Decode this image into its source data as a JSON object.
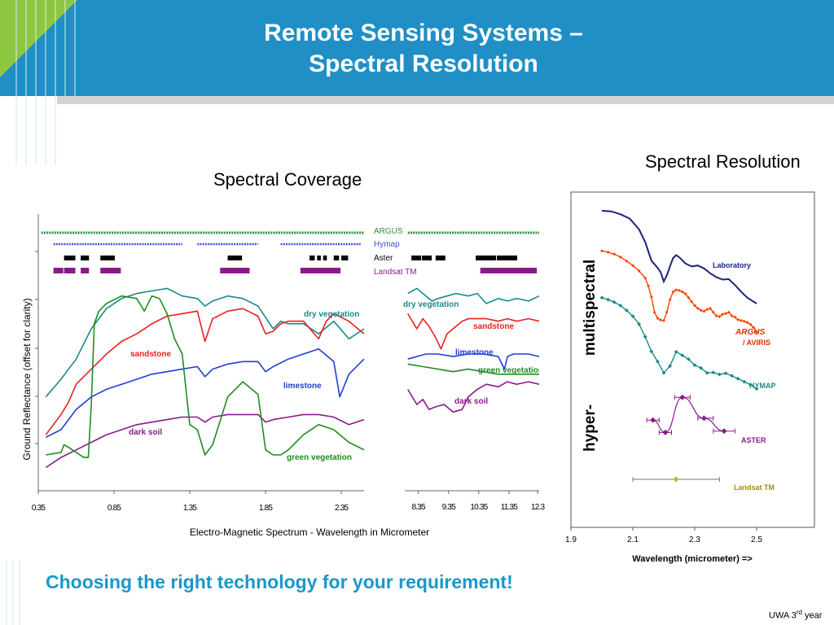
{
  "slide": {
    "title_line1": "Remote Sensing Systems –",
    "title_line2": "Spectral Resolution",
    "coverage_heading": "Spectral Coverage",
    "resolution_heading": "Spectral Resolution",
    "bottom_text": "Choosing the right technology for your requirement!",
    "footer": "UWA 3rd year",
    "footer_main": "UWA 3",
    "footer_sup": "rd",
    "footer_tail": " year"
  },
  "colors": {
    "header_blue": "#1f8fc6",
    "accent_green": "#8dc63f",
    "title_text": "#ffffff",
    "bottom_text": "#1a97c9",
    "dry_vegetation": "#1a8a8a",
    "sandstone": "#e82020",
    "limestone": "#1f3fd0",
    "green_vegetation": "#1f8c1f",
    "dark_soil": "#8a1a8a",
    "argus": "#2f8f3f",
    "hymap": "#3a50e0",
    "aster": "#000000",
    "landsat": "#8a1a8a"
  },
  "chart_data": [
    {
      "type": "line",
      "ylabel": "Ground Reflectance  (offset for clarity)",
      "xlabel": "Electro-Magnetic Spectrum - Wavelength in Micrometer",
      "x_ticks": [
        "0.35",
        "0.85",
        "1.35",
        "1.85",
        "2.35"
      ],
      "xlim": [
        0.35,
        2.5
      ],
      "sensor_legend": [
        "ARGUS",
        "Hymap",
        "Aster",
        "Landsat TM"
      ],
      "sensor_bands": [
        {
          "name": "ARGUS",
          "ranges": [
            [
              0.37,
              2.5
            ]
          ]
        },
        {
          "name": "Hymap",
          "ranges": [
            [
              0.45,
              1.3
            ],
            [
              1.4,
              1.8
            ],
            [
              1.95,
              2.48
            ]
          ]
        },
        {
          "name": "Aster",
          "ranges": [
            [
              0.52,
              0.6
            ],
            [
              0.63,
              0.69
            ],
            [
              0.76,
              0.86
            ],
            [
              1.6,
              1.7
            ],
            [
              2.14,
              2.18
            ],
            [
              2.19,
              2.22
            ],
            [
              2.23,
              2.26
            ],
            [
              2.3,
              2.34
            ],
            [
              2.35,
              2.4
            ]
          ]
        },
        {
          "name": "Landsat TM",
          "ranges": [
            [
              0.45,
              0.52
            ],
            [
              0.52,
              0.6
            ],
            [
              0.63,
              0.69
            ],
            [
              0.76,
              0.9
            ],
            [
              1.55,
              1.75
            ],
            [
              2.08,
              2.35
            ]
          ]
        }
      ],
      "series": [
        {
          "name": "dry vegetation",
          "x": [
            0.4,
            0.5,
            0.6,
            0.7,
            0.8,
            0.9,
            1.0,
            1.1,
            1.2,
            1.3,
            1.4,
            1.45,
            1.5,
            1.6,
            1.7,
            1.8,
            1.9,
            1.95,
            2.0,
            2.1,
            2.2,
            2.3,
            2.4,
            2.5
          ],
          "y": [
            0.33,
            0.4,
            0.48,
            0.6,
            0.68,
            0.72,
            0.74,
            0.75,
            0.76,
            0.73,
            0.72,
            0.69,
            0.71,
            0.73,
            0.72,
            0.69,
            0.6,
            0.63,
            0.62,
            0.62,
            0.58,
            0.63,
            0.56,
            0.6
          ]
        },
        {
          "name": "sandstone",
          "x": [
            0.4,
            0.5,
            0.55,
            0.6,
            0.7,
            0.8,
            0.9,
            1.0,
            1.1,
            1.2,
            1.3,
            1.4,
            1.45,
            1.5,
            1.6,
            1.7,
            1.8,
            1.85,
            1.9,
            1.95,
            2.0,
            2.1,
            2.2,
            2.25,
            2.3,
            2.4,
            2.5
          ],
          "y": [
            0.18,
            0.26,
            0.31,
            0.38,
            0.44,
            0.5,
            0.55,
            0.58,
            0.62,
            0.65,
            0.66,
            0.67,
            0.55,
            0.64,
            0.67,
            0.68,
            0.65,
            0.58,
            0.59,
            0.62,
            0.63,
            0.63,
            0.56,
            0.63,
            0.66,
            0.63,
            0.58
          ]
        },
        {
          "name": "limestone",
          "x": [
            0.4,
            0.5,
            0.6,
            0.7,
            0.8,
            0.9,
            1.0,
            1.1,
            1.2,
            1.3,
            1.4,
            1.45,
            1.5,
            1.6,
            1.7,
            1.8,
            1.85,
            1.9,
            2.0,
            2.1,
            2.2,
            2.3,
            2.34,
            2.4,
            2.5
          ],
          "y": [
            0.17,
            0.2,
            0.28,
            0.33,
            0.36,
            0.38,
            0.4,
            0.42,
            0.43,
            0.44,
            0.45,
            0.41,
            0.44,
            0.46,
            0.47,
            0.47,
            0.43,
            0.45,
            0.48,
            0.5,
            0.52,
            0.47,
            0.33,
            0.42,
            0.48
          ]
        },
        {
          "name": "dark soil",
          "x": [
            0.4,
            0.5,
            0.6,
            0.7,
            0.8,
            0.9,
            1.0,
            1.1,
            1.2,
            1.3,
            1.4,
            1.45,
            1.5,
            1.6,
            1.7,
            1.8,
            1.85,
            1.9,
            2.0,
            2.1,
            2.2,
            2.3,
            2.4,
            2.5
          ],
          "y": [
            0.05,
            0.09,
            0.12,
            0.15,
            0.18,
            0.2,
            0.22,
            0.23,
            0.24,
            0.25,
            0.25,
            0.23,
            0.25,
            0.26,
            0.26,
            0.26,
            0.23,
            0.24,
            0.25,
            0.26,
            0.26,
            0.25,
            0.22,
            0.24
          ]
        },
        {
          "name": "green vegetation",
          "x": [
            0.4,
            0.5,
            0.52,
            0.55,
            0.6,
            0.65,
            0.68,
            0.7,
            0.72,
            0.75,
            0.8,
            0.9,
            1.0,
            1.05,
            1.1,
            1.15,
            1.2,
            1.25,
            1.3,
            1.35,
            1.4,
            1.45,
            1.5,
            1.6,
            1.7,
            1.8,
            1.85,
            1.9,
            1.95,
            2.0,
            2.1,
            2.2,
            2.3,
            2.4,
            2.5
          ],
          "y": [
            0.1,
            0.11,
            0.14,
            0.13,
            0.11,
            0.09,
            0.09,
            0.3,
            0.62,
            0.67,
            0.7,
            0.73,
            0.72,
            0.67,
            0.73,
            0.72,
            0.66,
            0.56,
            0.5,
            0.22,
            0.2,
            0.1,
            0.14,
            0.33,
            0.39,
            0.34,
            0.12,
            0.1,
            0.1,
            0.12,
            0.18,
            0.22,
            0.2,
            0.15,
            0.12
          ]
        }
      ]
    },
    {
      "type": "line",
      "x_ticks": [
        "8.35",
        "9.35",
        "10.35",
        "11.35",
        "12.3"
      ],
      "xlim": [
        7.9,
        12.35
      ],
      "sensor_bands": [
        {
          "name": "ARGUS",
          "ranges": [
            [
              8.0,
              12.35
            ]
          ]
        },
        {
          "name": "Aster",
          "ranges": [
            [
              8.12,
              8.47
            ],
            [
              8.47,
              8.82
            ],
            [
              8.92,
              9.27
            ],
            [
              10.25,
              10.95
            ],
            [
              10.95,
              11.65
            ]
          ]
        },
        {
          "name": "Landsat TM",
          "ranges": [
            [
              10.4,
              12.3
            ]
          ]
        }
      ],
      "series": [
        {
          "name": "dry vegetation",
          "x": [
            8.0,
            8.3,
            8.6,
            8.8,
            9.0,
            9.3,
            9.6,
            10.0,
            10.3,
            10.6,
            11.0,
            11.3,
            11.6,
            12.0,
            12.35
          ],
          "y": [
            0.74,
            0.76,
            0.73,
            0.71,
            0.72,
            0.73,
            0.74,
            0.73,
            0.74,
            0.7,
            0.72,
            0.71,
            0.72,
            0.71,
            0.73
          ]
        },
        {
          "name": "sandstone",
          "x": [
            8.0,
            8.3,
            8.5,
            8.7,
            8.9,
            9.1,
            9.3,
            9.5,
            9.8,
            10.0,
            10.3,
            10.6,
            11.0,
            11.3,
            11.6,
            12.0,
            12.35
          ],
          "y": [
            0.66,
            0.6,
            0.64,
            0.61,
            0.57,
            0.52,
            0.58,
            0.6,
            0.63,
            0.64,
            0.64,
            0.64,
            0.63,
            0.64,
            0.63,
            0.64,
            0.63
          ]
        },
        {
          "name": "limestone",
          "x": [
            8.0,
            8.3,
            8.6,
            9.0,
            9.5,
            10.0,
            10.5,
            11.0,
            11.2,
            11.3,
            11.5,
            12.0,
            12.35
          ],
          "y": [
            0.48,
            0.49,
            0.5,
            0.5,
            0.49,
            0.5,
            0.5,
            0.49,
            0.44,
            0.49,
            0.5,
            0.5,
            0.49
          ]
        },
        {
          "name": "green vegetation",
          "x": [
            8.0,
            8.5,
            9.0,
            9.5,
            10.0,
            10.5,
            11.0,
            11.5,
            12.0,
            12.35
          ],
          "y": [
            0.46,
            0.45,
            0.44,
            0.43,
            0.44,
            0.43,
            0.42,
            0.42,
            0.42,
            0.42
          ]
        },
        {
          "name": "dark soil",
          "x": [
            8.0,
            8.3,
            8.5,
            8.7,
            8.9,
            9.2,
            9.5,
            9.8,
            10.0,
            10.3,
            10.6,
            11.0,
            11.3,
            11.6,
            12.0,
            12.35
          ],
          "y": [
            0.36,
            0.3,
            0.32,
            0.28,
            0.29,
            0.3,
            0.27,
            0.28,
            0.33,
            0.36,
            0.38,
            0.37,
            0.39,
            0.38,
            0.39,
            0.38
          ]
        }
      ]
    },
    {
      "type": "scatter",
      "xlabel": "Wavelength (micrometer) =>",
      "x_ticks": [
        "1.9",
        "2.1",
        "2.3",
        "2.5"
      ],
      "xlim": [
        1.9,
        2.55
      ],
      "side_labels": [
        "multispectral",
        "hyper-"
      ],
      "series": [
        {
          "name": "Laboratory",
          "x": [
            2.0,
            2.03,
            2.06,
            2.09,
            2.12,
            2.14,
            2.16,
            2.18,
            2.19,
            2.2,
            2.21,
            2.22,
            2.23,
            2.24,
            2.25,
            2.27,
            2.29,
            2.31,
            2.33,
            2.35,
            2.37,
            2.39,
            2.41,
            2.43,
            2.45,
            2.47,
            2.5
          ],
          "y": [
            10.0,
            9.97,
            9.82,
            9.6,
            9.05,
            8.4,
            7.45,
            7.08,
            6.85,
            6.38,
            6.7,
            7.15,
            7.58,
            7.73,
            7.62,
            7.3,
            7.15,
            7.2,
            7.05,
            6.8,
            6.6,
            6.48,
            6.5,
            6.2,
            5.85,
            5.55,
            5.25
          ]
        },
        {
          "name": "ARGUS / AVIRIS",
          "x": [
            2.0,
            2.02,
            2.04,
            2.06,
            2.08,
            2.1,
            2.12,
            2.14,
            2.15,
            2.16,
            2.17,
            2.18,
            2.19,
            2.2,
            2.21,
            2.22,
            2.23,
            2.24,
            2.25,
            2.26,
            2.27,
            2.28,
            2.29,
            2.3,
            2.31,
            2.32,
            2.33,
            2.34,
            2.35,
            2.36,
            2.37,
            2.38,
            2.39,
            2.4,
            2.41,
            2.42,
            2.43,
            2.44,
            2.45,
            2.46,
            2.47,
            2.48,
            2.49,
            2.5
          ],
          "y": [
            7.95,
            7.88,
            7.78,
            7.63,
            7.42,
            7.2,
            6.92,
            6.55,
            6.15,
            5.6,
            4.8,
            4.5,
            4.4,
            4.38,
            4.82,
            5.45,
            5.85,
            5.95,
            5.92,
            5.85,
            5.75,
            5.55,
            5.35,
            5.15,
            5.0,
            4.9,
            4.85,
            4.95,
            5.0,
            4.8,
            4.62,
            4.58,
            4.7,
            4.74,
            4.8,
            4.62,
            4.55,
            4.42,
            4.38,
            4.34,
            4.28,
            4.18,
            4.02,
            3.8
          ]
        },
        {
          "name": "HYMAP",
          "x": [
            2.0,
            2.02,
            2.04,
            2.06,
            2.08,
            2.1,
            2.12,
            2.14,
            2.16,
            2.18,
            2.2,
            2.22,
            2.24,
            2.26,
            2.28,
            2.3,
            2.32,
            2.34,
            2.36,
            2.38,
            2.4,
            2.42,
            2.44,
            2.46,
            2.48,
            2.5
          ],
          "y": [
            5.55,
            5.45,
            5.32,
            5.15,
            4.9,
            4.6,
            4.2,
            3.55,
            2.8,
            2.28,
            1.7,
            2.05,
            2.78,
            2.6,
            2.4,
            2.1,
            1.95,
            1.7,
            1.72,
            1.62,
            1.68,
            1.55,
            1.4,
            1.25,
            1.1,
            0.88
          ]
        },
        {
          "name": "ASTER",
          "x": [
            2.165,
            2.205,
            2.26,
            2.33,
            2.395
          ],
          "y": [
            -0.72,
            -1.35,
            0.45,
            -0.62,
            -1.28
          ],
          "xerr_low": [
            2.145,
            2.185,
            2.235,
            2.31,
            2.36
          ],
          "xerr_high": [
            2.185,
            2.225,
            2.285,
            2.36,
            2.43
          ]
        },
        {
          "name": "Landsat TM",
          "x": [
            2.24
          ],
          "y": [
            -3.75
          ],
          "xerr_low": [
            2.1
          ],
          "xerr_high": [
            2.38
          ]
        }
      ],
      "series_labels": [
        "Laboratory",
        "ARGUS",
        "/ AVIRIS",
        "HYMAP",
        "ASTER",
        "Landsat TM"
      ]
    }
  ]
}
